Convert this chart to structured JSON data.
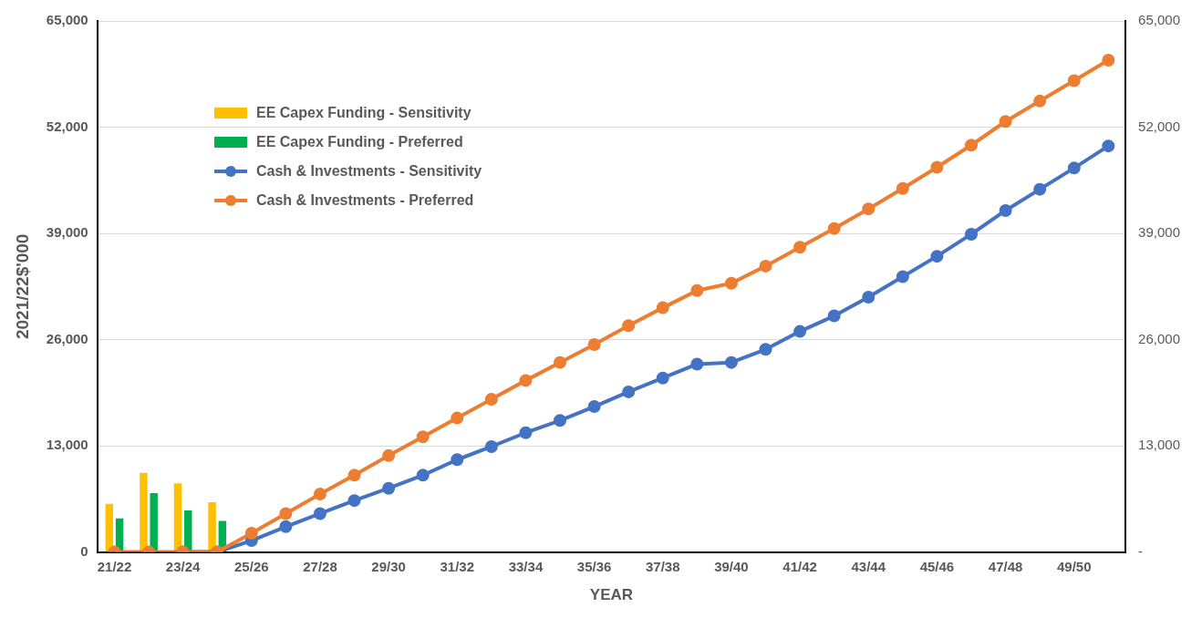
{
  "chart_data": {
    "type": "bar",
    "xlabel": "YEAR",
    "ylabel": "2021/22$'000",
    "categories": [
      "21/22",
      null,
      "23/24",
      null,
      "25/26",
      null,
      "27/28",
      null,
      "29/30",
      null,
      "31/32",
      null,
      "33/34",
      null,
      "35/36",
      null,
      "37/38",
      null,
      "39/40",
      null,
      "41/42",
      null,
      "43/44",
      null,
      "45/46",
      null,
      "47/48",
      null,
      "49/50",
      null
    ],
    "series": [
      {
        "name": "EE Capex Funding - Sensitivity",
        "type": "bar",
        "color": "#ffc000",
        "values": [
          5900,
          9700,
          8400,
          6100,
          null,
          null,
          null,
          null,
          null,
          null,
          null,
          null,
          null,
          null,
          null,
          null,
          null,
          null,
          null,
          null,
          null,
          null,
          null,
          null,
          null,
          null,
          null,
          null,
          null,
          null
        ]
      },
      {
        "name": "EE Capex Funding - Preferred",
        "type": "bar",
        "color": "#00b050",
        "values": [
          4100,
          7200,
          5100,
          3800,
          null,
          null,
          null,
          null,
          null,
          null,
          null,
          null,
          null,
          null,
          null,
          null,
          null,
          null,
          null,
          null,
          null,
          null,
          null,
          null,
          null,
          null,
          null,
          null,
          null,
          null
        ]
      },
      {
        "name": "Cash & Investments - Sensitivity",
        "type": "line",
        "color": "#4472c4",
        "values": [
          null,
          null,
          0,
          0,
          1400,
          3100,
          4700,
          6300,
          7800,
          9400,
          11300,
          12900,
          14600,
          16100,
          17800,
          19600,
          21300,
          23000,
          23200,
          24800,
          27000,
          28900,
          31200,
          33700,
          36200,
          38900,
          41800,
          44400,
          47000,
          49700
        ]
      },
      {
        "name": "Cash & Investments - Preferred",
        "type": "line",
        "color": "#ed7d31",
        "values": [
          0,
          0,
          0,
          0,
          2300,
          4700,
          7100,
          9400,
          11800,
          14100,
          16400,
          18700,
          21000,
          23200,
          25400,
          27700,
          29900,
          32000,
          32900,
          35000,
          37300,
          39600,
          42000,
          44500,
          47100,
          49800,
          52700,
          55200,
          57700,
          60200
        ]
      }
    ],
    "ylim": [
      0,
      65000
    ],
    "yticks": [
      0,
      {
        "value": 13000,
        "label": "13,000"
      },
      {
        "value": 26000,
        "label": "26,000"
      },
      {
        "value": 39000,
        "label": "39,000"
      },
      {
        "value": 52000,
        "label": "52,000"
      },
      {
        "value": 65000,
        "label": "65,000"
      }
    ],
    "y2lim": [
      0,
      65000
    ],
    "y2ticks": [
      {
        "value": 0,
        "label": "-"
      },
      {
        "value": 13000,
        "label": "13,000"
      },
      {
        "value": 26000,
        "label": "26,000"
      },
      {
        "value": 39000,
        "label": "39,000"
      },
      {
        "value": 52000,
        "label": "52,000"
      },
      {
        "value": 65000,
        "label": "65,000"
      }
    ],
    "grid": "y",
    "legend": "top left",
    "marker": "circle",
    "line_style": "solid"
  }
}
